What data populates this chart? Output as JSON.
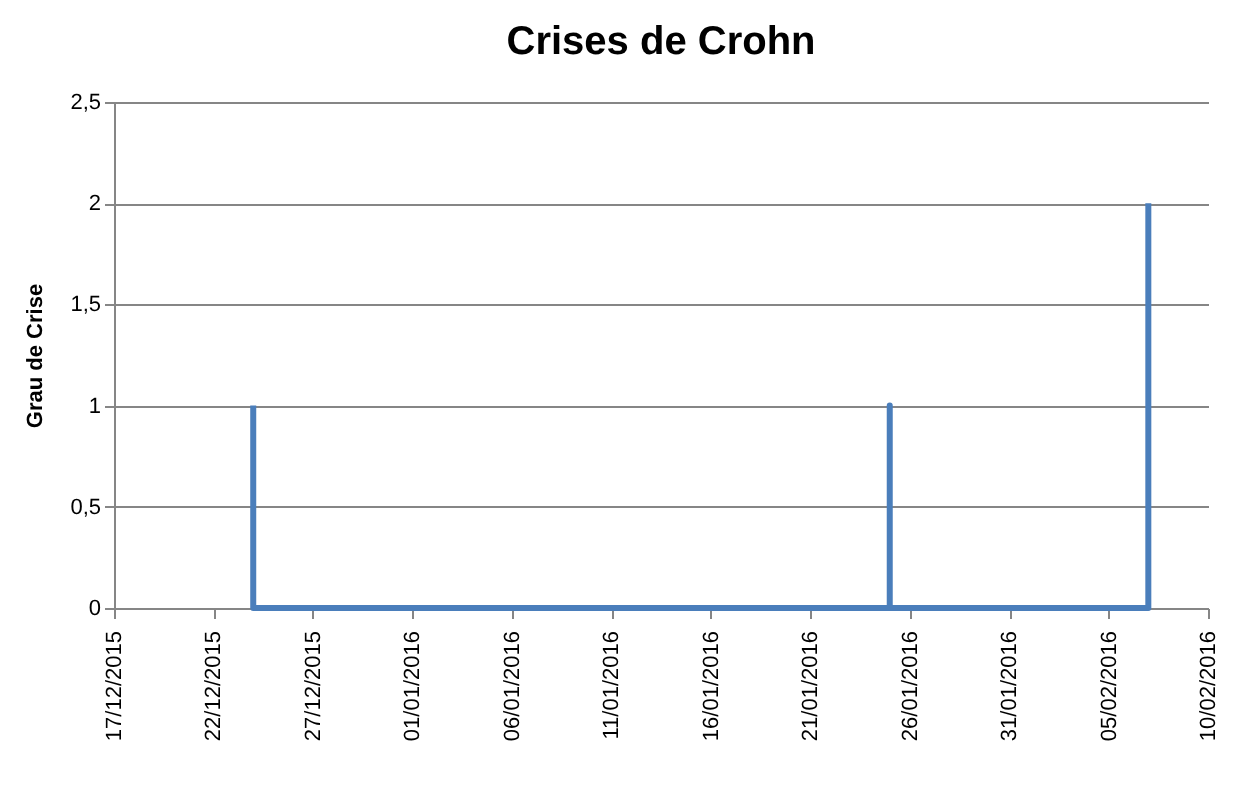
{
  "chart_data": {
    "type": "line",
    "title": "Crises de Crohn",
    "ylabel": "Grau de Crise",
    "x": [
      "2015-12-24",
      "2015-12-24",
      "2016-01-25",
      "2016-01-25",
      "2016-01-25",
      "2016-02-07",
      "2016-02-07"
    ],
    "series": [
      {
        "color": "#4a7ebb",
        "values": [
          1,
          0,
          0,
          1,
          0,
          0,
          2
        ]
      }
    ],
    "xlim": [
      "2015-12-17",
      "2016-02-10"
    ],
    "xticks": [
      {
        "value": "2015-12-17",
        "label": "17/12/2015"
      },
      {
        "value": "2015-12-22",
        "label": "22/12/2015"
      },
      {
        "value": "2015-12-27",
        "label": "27/12/2015"
      },
      {
        "value": "2016-01-01",
        "label": "01/01/2016"
      },
      {
        "value": "2016-01-06",
        "label": "06/01/2016"
      },
      {
        "value": "2016-01-11",
        "label": "11/01/2016"
      },
      {
        "value": "2016-01-16",
        "label": "16/01/2016"
      },
      {
        "value": "2016-01-21",
        "label": "21/01/2016"
      },
      {
        "value": "2016-01-26",
        "label": "26/01/2016"
      },
      {
        "value": "2016-01-31",
        "label": "31/01/2016"
      },
      {
        "value": "2016-02-05",
        "label": "05/02/2016"
      },
      {
        "value": "2016-02-10",
        "label": "10/02/2016"
      }
    ],
    "ylim": [
      0,
      2.5
    ],
    "yticks": [
      {
        "value": 0,
        "label": "0"
      },
      {
        "value": 0.5,
        "label": "0,5"
      },
      {
        "value": 1,
        "label": "1"
      },
      {
        "value": 1.5,
        "label": "1,5"
      },
      {
        "value": 2,
        "label": "2"
      },
      {
        "value": 2.5,
        "label": "2,5"
      }
    ],
    "grid": "y",
    "legend": false,
    "marker": "none",
    "line_style": "solid"
  }
}
